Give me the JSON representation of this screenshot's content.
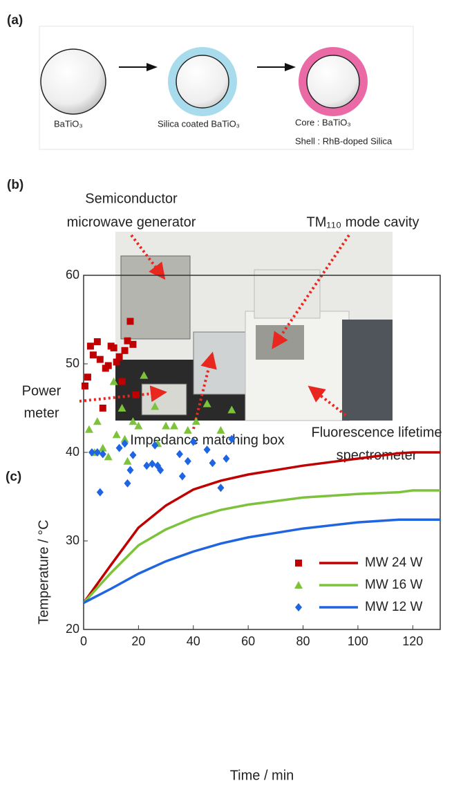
{
  "panel_a": {
    "label": "(a)",
    "items": [
      "BaTiO₃",
      "Silica coated BaTiO₃"
    ],
    "core": "Core : BaTiO₃",
    "shell": "Shell : RhB-doped Silica"
  },
  "panel_b": {
    "label": "(b)",
    "generator": [
      "Semiconductor",
      "microwave generator"
    ],
    "cavity": "TM₁₁₀ mode cavity",
    "power_meter": [
      "Power",
      "meter"
    ],
    "matching_box": "Impedance matching box",
    "spectrometer": [
      "Fluorescence lifetime",
      "spectrometer"
    ]
  },
  "chart_data": {
    "type": "scatter",
    "panel_label": "(c)",
    "x_label": "Time / min",
    "y_label": "Temperature / °C",
    "xlim": [
      0,
      130
    ],
    "xticks": [
      0,
      20,
      40,
      60,
      80,
      100,
      120
    ],
    "ylim": [
      20,
      60
    ],
    "yticks": [
      20,
      30,
      40,
      50,
      60
    ],
    "legend": "lower right",
    "series": [
      {
        "name": "MW 24 W",
        "color": "#c00000",
        "marker": "square",
        "x": [
          0.5,
          1.5,
          2.5,
          3.5,
          5,
          6,
          7,
          8,
          9,
          10,
          11,
          12,
          13,
          14,
          15,
          16,
          17,
          18,
          19
        ],
        "values": [
          47.5,
          48.5,
          52,
          51,
          52.5,
          50.5,
          45,
          49.5,
          49.8,
          52,
          51.8,
          50.2,
          50.8,
          48,
          51.5,
          52.6,
          54.8,
          52.2,
          46.5
        ],
        "curve": {
          "x": [
            0,
            10,
            20,
            30,
            40,
            50,
            60,
            80,
            100,
            115,
            120,
            130
          ],
          "values": [
            23,
            27.3,
            31.5,
            34,
            35.8,
            36.8,
            37.5,
            38.5,
            39.3,
            39.9,
            40,
            40
          ]
        }
      },
      {
        "name": "MW 16 W",
        "color": "#7cc23a",
        "marker": "triangle",
        "x": [
          2,
          4,
          5,
          7,
          9,
          11,
          12,
          14,
          15,
          16,
          18,
          20,
          22,
          26,
          27,
          30,
          33,
          38,
          41,
          45,
          50,
          54
        ],
        "values": [
          42.6,
          40,
          43.5,
          40.5,
          39.5,
          48,
          42,
          45,
          41.5,
          39,
          43.5,
          43,
          48.7,
          45.2,
          41,
          43,
          43,
          42.5,
          43.5,
          45.5,
          42.5,
          44.8
        ],
        "curve": {
          "x": [
            0,
            10,
            20,
            30,
            40,
            50,
            60,
            80,
            100,
            115,
            120,
            130
          ],
          "values": [
            23,
            26.4,
            29.5,
            31.3,
            32.6,
            33.5,
            34.1,
            34.9,
            35.3,
            35.5,
            35.7,
            35.7
          ]
        }
      },
      {
        "name": "MW 12 W",
        "color": "#1f64e0",
        "marker": "diamond",
        "x": [
          3,
          5,
          6,
          7,
          13,
          15,
          16,
          17,
          18,
          23,
          25,
          26,
          27,
          28,
          35,
          36,
          38,
          40,
          45,
          47,
          50,
          52,
          54
        ],
        "values": [
          40,
          40,
          35.5,
          39.8,
          40.5,
          41,
          36.5,
          38,
          39.7,
          38.5,
          38.7,
          40.8,
          38.5,
          38,
          39.8,
          37.3,
          39,
          41.2,
          40.3,
          38.8,
          36,
          39.3,
          41.5
        ],
        "curve": {
          "x": [
            0,
            10,
            20,
            30,
            40,
            50,
            60,
            80,
            100,
            115,
            120,
            130
          ],
          "values": [
            23,
            24.6,
            26.3,
            27.7,
            28.8,
            29.7,
            30.4,
            31.4,
            32.1,
            32.4,
            32.4,
            32.4
          ]
        }
      }
    ]
  }
}
